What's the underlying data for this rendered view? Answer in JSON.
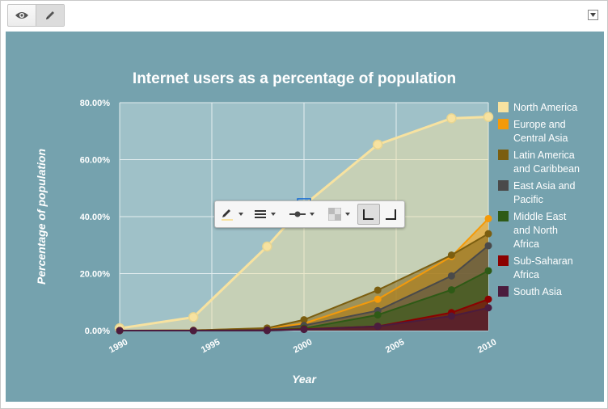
{
  "toolbar": {
    "buttons": [
      {
        "name": "view-button",
        "icon": "eye-icon",
        "active": false
      },
      {
        "name": "edit-button",
        "icon": "pencil-icon",
        "active": true
      }
    ],
    "menu_icon": "caret-down-icon"
  },
  "chart_data": {
    "type": "area",
    "title": "Internet users as a percentage of population",
    "xlabel": "Year",
    "ylabel": "Percentage of population",
    "xlim": [
      1990,
      2010
    ],
    "ylim": [
      0,
      80
    ],
    "x_ticks": [
      "1990",
      "1995",
      "2000",
      "2005",
      "2010"
    ],
    "y_ticks": [
      "0.00%",
      "20.00%",
      "40.00%",
      "60.00%",
      "80.00%"
    ],
    "grid": true,
    "legend_position": "right",
    "x": [
      1990,
      1994,
      1998,
      2000,
      2004,
      2008,
      2010
    ],
    "series": [
      {
        "name": "North America",
        "color": "#f7e2a0",
        "values": [
          0.8,
          4.7,
          29.5,
          44,
          65.3,
          74.5,
          75
        ]
      },
      {
        "name": "Europe and Central Asia",
        "color": "#f49a0a",
        "values": [
          0,
          0.1,
          0.8,
          2.5,
          11,
          26,
          39.3
        ]
      },
      {
        "name": "Latin America and Caribbean",
        "color": "#7b5e10",
        "values": [
          0,
          0.1,
          0.9,
          3.8,
          14.2,
          26.5,
          34
        ]
      },
      {
        "name": "East Asia and Pacific",
        "color": "#4a4a4a",
        "values": [
          0,
          0,
          0.3,
          1.8,
          7,
          19.2,
          29.8
        ]
      },
      {
        "name": "Middle East and North Africa",
        "color": "#2e5a16",
        "values": [
          0,
          0,
          0.1,
          0.8,
          5.5,
          14.3,
          21
        ]
      },
      {
        "name": "Sub-Saharan Africa",
        "color": "#8b0000",
        "values": [
          0,
          0,
          0.1,
          0.5,
          1.5,
          6.3,
          11
        ]
      },
      {
        "name": "South Asia",
        "color": "#4b1c3e",
        "values": [
          0,
          0,
          0,
          0.4,
          1.5,
          5.1,
          8
        ]
      }
    ]
  },
  "floating_toolbar": {
    "items": [
      "pencil-color-icon",
      "line-weight-icon",
      "marker-style-icon",
      "opacity-icon",
      "corner-left-icon",
      "corner-right-icon"
    ]
  }
}
